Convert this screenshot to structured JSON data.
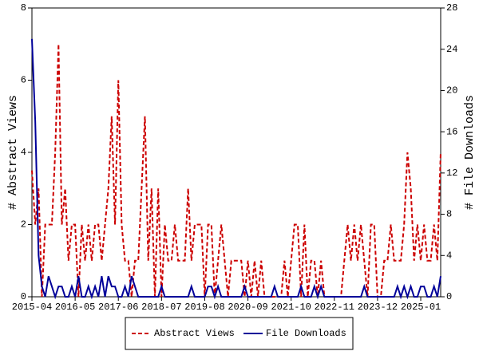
{
  "chart_data": {
    "type": "line",
    "categories": [
      "2015-04",
      null,
      null,
      null,
      null,
      null,
      null,
      null,
      null,
      null,
      null,
      null,
      null,
      "2016-05",
      null,
      null,
      null,
      null,
      null,
      null,
      null,
      null,
      null,
      null,
      null,
      null,
      "2017-06",
      null,
      null,
      null,
      null,
      null,
      null,
      null,
      null,
      null,
      null,
      null,
      null,
      "2018-07",
      null,
      null,
      null,
      null,
      null,
      null,
      null,
      null,
      null,
      null,
      null,
      null,
      "2019-08",
      null,
      null,
      null,
      null,
      null,
      null,
      null,
      null,
      null,
      null,
      null,
      null,
      "2020-09",
      null,
      null,
      null,
      null,
      null,
      null,
      null,
      null,
      null,
      null,
      null,
      null,
      "2021-10",
      null,
      null,
      null,
      null,
      null,
      null,
      null,
      null,
      null,
      null,
      null,
      null,
      "2022-11",
      null,
      null,
      null,
      null,
      null,
      null,
      null,
      null,
      null,
      null,
      null,
      null,
      "2023-12",
      null,
      null,
      null,
      null,
      null,
      null,
      null,
      null,
      null,
      null,
      null,
      null,
      "2025-01",
      null,
      null,
      null,
      null,
      null,
      null
    ],
    "ylabel": "# Abstract Views",
    "y2label": "# File Downloads",
    "ylim": [
      0,
      8
    ],
    "yticks": [
      0,
      2,
      4,
      6,
      8
    ],
    "y2lim": [
      0,
      28
    ],
    "y2ticks": [
      0,
      4,
      8,
      12,
      16,
      20,
      24,
      28
    ],
    "legend": "bottom",
    "series": [
      {
        "name": "Abstract Views",
        "color": "#cc0000",
        "dashed": true,
        "axis": "y",
        "values": [
          3.5,
          2,
          3,
          0,
          2,
          2,
          2,
          4,
          7,
          2,
          3,
          1,
          2,
          2,
          0,
          2,
          1,
          2,
          1,
          2,
          2,
          1,
          2,
          3,
          5,
          2,
          6,
          2,
          1,
          1,
          0,
          1,
          1,
          3,
          5,
          1,
          3,
          0,
          3,
          0,
          2,
          1,
          1,
          2,
          1,
          1,
          1,
          3,
          1,
          2,
          2,
          2,
          0,
          2,
          2,
          0,
          1,
          2,
          1,
          0,
          1,
          1,
          1,
          1,
          0,
          1,
          0,
          1,
          0,
          1,
          0,
          0,
          0,
          0,
          0,
          0,
          1,
          0,
          1,
          2,
          2,
          0,
          2,
          0,
          1,
          1,
          0,
          1,
          0,
          0,
          0,
          0,
          0,
          0,
          1,
          2,
          1,
          2,
          1,
          2,
          1,
          0,
          2,
          2,
          0,
          0,
          1,
          1,
          2,
          1,
          1,
          1,
          2,
          4,
          3,
          1,
          2,
          1,
          2,
          1,
          1,
          2,
          1,
          4
        ]
      },
      {
        "name": "File Downloads",
        "color": "#000099",
        "dashed": false,
        "axis": "y2",
        "values": [
          25,
          17,
          4,
          1,
          0,
          2,
          1,
          0,
          1,
          1,
          0,
          0,
          1,
          0,
          2,
          0,
          0,
          1,
          0,
          1,
          0,
          2,
          0,
          2,
          1,
          1,
          0,
          0,
          1,
          0,
          2,
          1,
          0,
          0,
          0,
          0,
          0,
          0,
          0,
          1,
          0,
          0,
          0,
          0,
          0,
          0,
          0,
          0,
          1,
          0,
          0,
          0,
          0,
          1,
          1,
          0,
          1,
          0,
          0,
          0,
          0,
          0,
          0,
          0,
          1,
          0,
          0,
          0,
          0,
          0,
          0,
          0,
          0,
          1,
          0,
          0,
          0,
          0,
          0,
          0,
          0,
          1,
          0,
          0,
          0,
          1,
          0,
          1,
          0,
          0,
          0,
          0,
          0,
          0,
          0,
          0,
          0,
          0,
          0,
          0,
          1,
          0,
          0,
          0,
          0,
          0,
          0,
          0,
          0,
          0,
          1,
          0,
          1,
          0,
          1,
          0,
          0,
          1,
          1,
          0,
          0,
          1,
          0,
          2
        ]
      }
    ]
  }
}
